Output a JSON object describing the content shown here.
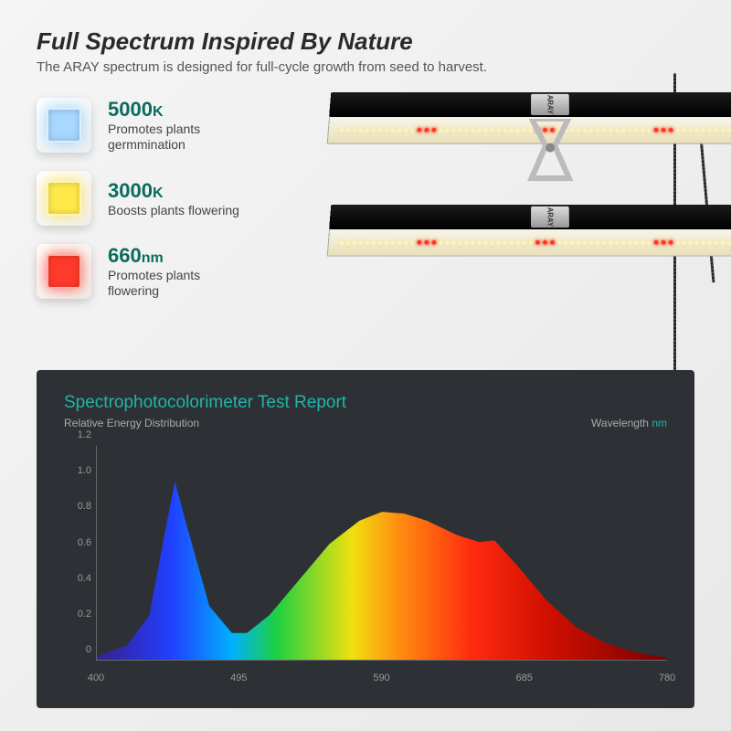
{
  "header": {
    "title": "Full Spectrum Inspired By Nature",
    "subtitle": "The ARAY spectrum is designed for full-cycle growth from seed to harvest."
  },
  "features": [
    {
      "value": "5000",
      "unit": "K",
      "desc": "Promotes plants germmination",
      "chip_color": "#a8d8ff",
      "glow": "rgba(120,200,255,0.8)"
    },
    {
      "value": "3000",
      "unit": "K",
      "desc": "Boosts plants flowering",
      "chip_color": "#ffe94a",
      "glow": "rgba(255,220,50,0.8)"
    },
    {
      "value": "660",
      "unit": "nm",
      "desc": "Promotes plants flowering",
      "chip_color": "#ff3a2a",
      "glow": "rgba(255,50,30,0.8)"
    }
  ],
  "light_bar": {
    "brand": "ARAY",
    "led_count": 60,
    "red_positions": [
      12,
      13,
      14,
      30,
      31,
      32,
      48,
      49,
      50
    ]
  },
  "chart": {
    "title": "Spectrophotocolorimeter Test Report",
    "y_label": "Relative Energy Distribution",
    "x_label": "Wavelength",
    "x_unit": "nm",
    "panel_bg": "#2d3135",
    "accent": "#1fb5a8",
    "y_ticks": [
      0,
      0.2,
      0.4,
      0.6,
      0.8,
      1.0,
      1.2
    ],
    "y_max": 1.2,
    "x_ticks": [
      400,
      495,
      590,
      685,
      780
    ],
    "x_min": 400,
    "x_max": 780,
    "spectrum_stops": [
      {
        "nm": 400,
        "color": "#3a1f8f"
      },
      {
        "nm": 450,
        "color": "#2040ff"
      },
      {
        "nm": 490,
        "color": "#00b0ff"
      },
      {
        "nm": 520,
        "color": "#1fd040"
      },
      {
        "nm": 570,
        "color": "#f0e010"
      },
      {
        "nm": 600,
        "color": "#ff9010"
      },
      {
        "nm": 650,
        "color": "#ff2a10"
      },
      {
        "nm": 700,
        "color": "#d01000"
      },
      {
        "nm": 780,
        "color": "#7a0000"
      }
    ],
    "curve": [
      {
        "nm": 400,
        "v": 0.02
      },
      {
        "nm": 420,
        "v": 0.08
      },
      {
        "nm": 435,
        "v": 0.25
      },
      {
        "nm": 445,
        "v": 0.7
      },
      {
        "nm": 452,
        "v": 1.0
      },
      {
        "nm": 460,
        "v": 0.75
      },
      {
        "nm": 475,
        "v": 0.3
      },
      {
        "nm": 490,
        "v": 0.15
      },
      {
        "nm": 500,
        "v": 0.15
      },
      {
        "nm": 515,
        "v": 0.25
      },
      {
        "nm": 535,
        "v": 0.45
      },
      {
        "nm": 555,
        "v": 0.65
      },
      {
        "nm": 575,
        "v": 0.78
      },
      {
        "nm": 590,
        "v": 0.83
      },
      {
        "nm": 605,
        "v": 0.82
      },
      {
        "nm": 620,
        "v": 0.78
      },
      {
        "nm": 640,
        "v": 0.7
      },
      {
        "nm": 655,
        "v": 0.66
      },
      {
        "nm": 665,
        "v": 0.67
      },
      {
        "nm": 680,
        "v": 0.53
      },
      {
        "nm": 700,
        "v": 0.33
      },
      {
        "nm": 720,
        "v": 0.18
      },
      {
        "nm": 740,
        "v": 0.09
      },
      {
        "nm": 760,
        "v": 0.04
      },
      {
        "nm": 780,
        "v": 0.01
      }
    ]
  }
}
